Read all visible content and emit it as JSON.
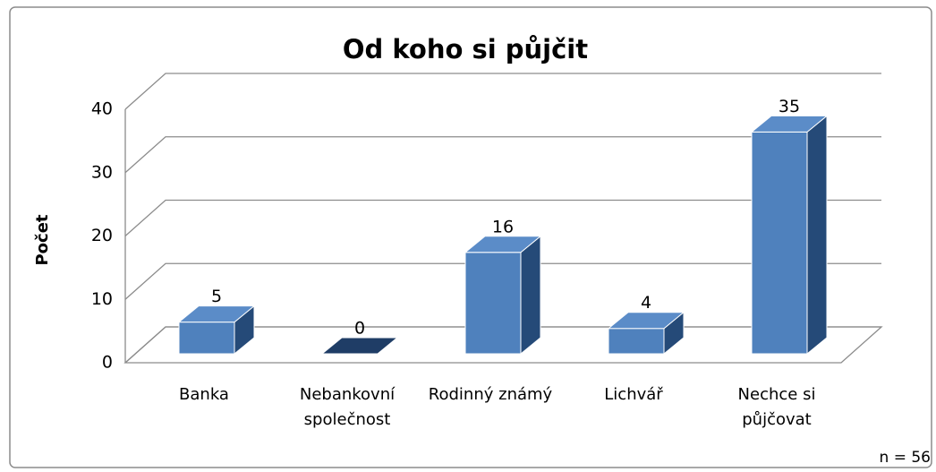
{
  "chart_data": {
    "type": "bar",
    "title": "Od koho si půjčit",
    "y_label": "Počet",
    "annotation": "n = 56",
    "categories": [
      "Banka",
      "Nebankovní společnost",
      "Rodinný známý",
      "Lichvář",
      "Nechce si půjčovat"
    ],
    "values": [
      5,
      0,
      16,
      4,
      35
    ],
    "color": "#4f81bd",
    "ylim": [
      0,
      40
    ],
    "yticks": [
      0,
      10,
      20,
      30,
      40
    ],
    "grid": true
  }
}
